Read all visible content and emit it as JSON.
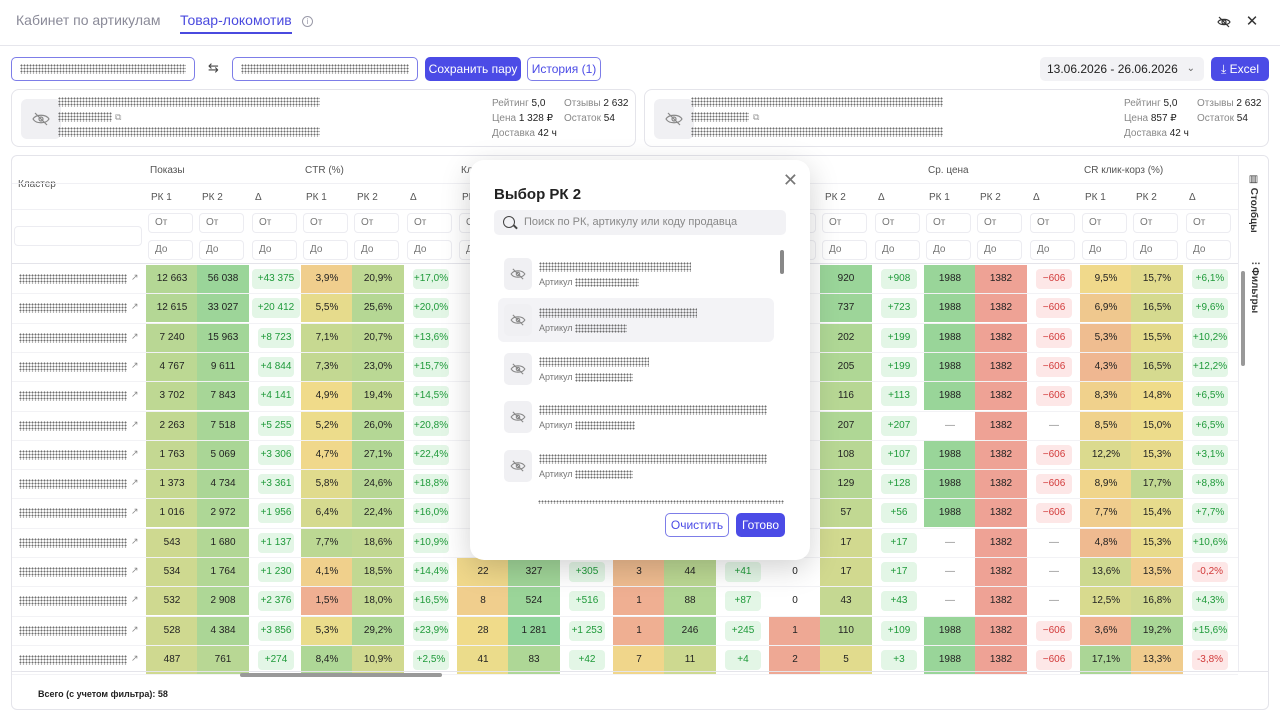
{
  "tabs": [
    {
      "label": "Кабинет по артикулам",
      "active": false
    },
    {
      "label": "Товар-локомотив",
      "active": true
    }
  ],
  "toolbar": {
    "save_pair": "Сохранить пару",
    "history": "История (1)",
    "date_range": "13.06.2026 - 26.06.2026",
    "excel": "Excel"
  },
  "cards": [
    {
      "rating_label": "Рейтинг",
      "rating": "5,0",
      "reviews_label": "Отзывы",
      "reviews": "2 632",
      "price_label": "Цена",
      "price": "1 328 ₽",
      "stock_label": "Остаток",
      "stock": "54",
      "delivery_label": "Доставка",
      "delivery": "42 ч"
    },
    {
      "rating_label": "Рейтинг",
      "rating": "5,0",
      "reviews_label": "Отзывы",
      "reviews": "2 632",
      "price_label": "Цена",
      "price": "857 ₽",
      "stock_label": "Остаток",
      "stock": "54",
      "delivery_label": "Доставка",
      "delivery": "42 ч"
    }
  ],
  "table": {
    "cluster_header": "Кластер",
    "groups": [
      "Показы",
      "CTR (%)",
      "Кл",
      "Ср. цена",
      "CR клик-корз (%)",
      "С"
    ],
    "sub": [
      "РК 1",
      "РК 2",
      "Δ"
    ],
    "from": "От",
    "to": "До",
    "footer": "Всего (с учетом фильтра): 58",
    "side_columns": "Столбцы",
    "side_filters": "Фильтры",
    "rows": [
      {
        "s1": "12 663",
        "s2": "56 038",
        "sd": "+43 375",
        "c1": "3,9%",
        "c2": "20,9%",
        "cd": "+17,0%",
        "k1": "",
        "k2": "",
        "kd": "",
        "o1": "",
        "o2": "",
        "od": "",
        "x1": "",
        "x2": "920",
        "xd": "+908",
        "p1": "1988",
        "p2": "1382",
        "pd": "−606",
        "r1": "9,5%",
        "r2": "15,7%",
        "rd": "+6,1%"
      },
      {
        "s1": "12 615",
        "s2": "33 027",
        "sd": "+20 412",
        "c1": "5,5%",
        "c2": "25,6%",
        "cd": "+20,0%",
        "k1": "",
        "k2": "",
        "kd": "",
        "o1": "",
        "o2": "",
        "od": "",
        "x1": "",
        "x2": "737",
        "xd": "+723",
        "p1": "1988",
        "p2": "1382",
        "pd": "−606",
        "r1": "6,9%",
        "r2": "16,5%",
        "rd": "+9,6%"
      },
      {
        "s1": "7 240",
        "s2": "15 963",
        "sd": "+8 723",
        "c1": "7,1%",
        "c2": "20,7%",
        "cd": "+13,6%",
        "k1": "",
        "k2": "",
        "kd": "",
        "o1": "",
        "o2": "",
        "od": "",
        "x1": "",
        "x2": "202",
        "xd": "+199",
        "p1": "1988",
        "p2": "1382",
        "pd": "−606",
        "r1": "5,3%",
        "r2": "15,5%",
        "rd": "+10,2%"
      },
      {
        "s1": "4 767",
        "s2": "9 611",
        "sd": "+4 844",
        "c1": "7,3%",
        "c2": "23,0%",
        "cd": "+15,7%",
        "k1": "",
        "k2": "",
        "kd": "",
        "o1": "",
        "o2": "",
        "od": "",
        "x1": "",
        "x2": "205",
        "xd": "+199",
        "p1": "1988",
        "p2": "1382",
        "pd": "−606",
        "r1": "4,3%",
        "r2": "16,5%",
        "rd": "+12,2%"
      },
      {
        "s1": "3 702",
        "s2": "7 843",
        "sd": "+4 141",
        "c1": "4,9%",
        "c2": "19,4%",
        "cd": "+14,5%",
        "k1": "",
        "k2": "",
        "kd": "",
        "o1": "",
        "o2": "",
        "od": "",
        "x1": "",
        "x2": "116",
        "xd": "+113",
        "p1": "1988",
        "p2": "1382",
        "pd": "−606",
        "r1": "8,3%",
        "r2": "14,8%",
        "rd": "+6,5%"
      },
      {
        "s1": "2 263",
        "s2": "7 518",
        "sd": "+5 255",
        "c1": "5,2%",
        "c2": "26,0%",
        "cd": "+20,8%",
        "k1": "",
        "k2": "",
        "kd": "",
        "o1": "",
        "o2": "",
        "od": "",
        "x1": "",
        "x2": "207",
        "xd": "+207",
        "p1": "—",
        "p2": "1382",
        "pd": "—",
        "r1": "8,5%",
        "r2": "15,0%",
        "rd": "+6,5%"
      },
      {
        "s1": "1 763",
        "s2": "5 069",
        "sd": "+3 306",
        "c1": "4,7%",
        "c2": "27,1%",
        "cd": "+22,4%",
        "k1": "",
        "k2": "",
        "kd": "",
        "o1": "",
        "o2": "",
        "od": "",
        "x1": "",
        "x2": "108",
        "xd": "+107",
        "p1": "1988",
        "p2": "1382",
        "pd": "−606",
        "r1": "12,2%",
        "r2": "15,3%",
        "rd": "+3,1%"
      },
      {
        "s1": "1 373",
        "s2": "4 734",
        "sd": "+3 361",
        "c1": "5,8%",
        "c2": "24,6%",
        "cd": "+18,8%",
        "k1": "",
        "k2": "",
        "kd": "",
        "o1": "",
        "o2": "",
        "od": "",
        "x1": "",
        "x2": "129",
        "xd": "+128",
        "p1": "1988",
        "p2": "1382",
        "pd": "−606",
        "r1": "8,9%",
        "r2": "17,7%",
        "rd": "+8,8%"
      },
      {
        "s1": "1 016",
        "s2": "2 972",
        "sd": "+1 956",
        "c1": "6,4%",
        "c2": "22,4%",
        "cd": "+16,0%",
        "k1": "",
        "k2": "",
        "kd": "",
        "o1": "",
        "o2": "",
        "od": "",
        "x1": "",
        "x2": "57",
        "xd": "+56",
        "p1": "1988",
        "p2": "1382",
        "pd": "−606",
        "r1": "7,7%",
        "r2": "15,4%",
        "rd": "+7,7%"
      },
      {
        "s1": "543",
        "s2": "1 680",
        "sd": "+1 137",
        "c1": "7,7%",
        "c2": "18,6%",
        "cd": "+10,9%",
        "k1": "",
        "k2": "",
        "kd": "",
        "o1": "",
        "o2": "",
        "od": "",
        "x1": "",
        "x2": "17",
        "xd": "+17",
        "p1": "—",
        "p2": "1382",
        "pd": "—",
        "r1": "4,8%",
        "r2": "15,3%",
        "rd": "+10,6%"
      },
      {
        "s1": "534",
        "s2": "1 764",
        "sd": "+1 230",
        "c1": "4,1%",
        "c2": "18,5%",
        "cd": "+14,4%",
        "k1": "22",
        "k2": "327",
        "kd": "+305",
        "o1": "3",
        "o2": "44",
        "od": "+41",
        "x1": "0",
        "x2": "17",
        "xd": "+17",
        "p1": "—",
        "p2": "1382",
        "pd": "—",
        "r1": "13,6%",
        "r2": "13,5%",
        "rd": "-0,2%"
      },
      {
        "s1": "532",
        "s2": "2 908",
        "sd": "+2 376",
        "c1": "1,5%",
        "c2": "18,0%",
        "cd": "+16,5%",
        "k1": "8",
        "k2": "524",
        "kd": "+516",
        "o1": "1",
        "o2": "88",
        "od": "+87",
        "x1": "0",
        "x2": "43",
        "xd": "+43",
        "p1": "—",
        "p2": "1382",
        "pd": "—",
        "r1": "12,5%",
        "r2": "16,8%",
        "rd": "+4,3%"
      },
      {
        "s1": "528",
        "s2": "4 384",
        "sd": "+3 856",
        "c1": "5,3%",
        "c2": "29,2%",
        "cd": "+23,9%",
        "k1": "28",
        "k2": "1 281",
        "kd": "+1 253",
        "o1": "1",
        "o2": "246",
        "od": "+245",
        "x1": "1",
        "x2": "110",
        "xd": "+109",
        "p1": "1988",
        "p2": "1382",
        "pd": "−606",
        "r1": "3,6%",
        "r2": "19,2%",
        "rd": "+15,6%"
      },
      {
        "s1": "487",
        "s2": "761",
        "sd": "+274",
        "c1": "8,4%",
        "c2": "10,9%",
        "cd": "+2,5%",
        "k1": "41",
        "k2": "83",
        "kd": "+42",
        "o1": "7",
        "o2": "11",
        "od": "+4",
        "x1": "2",
        "x2": "5",
        "xd": "+3",
        "p1": "1988",
        "p2": "1382",
        "pd": "−606",
        "r1": "17,1%",
        "r2": "13,3%",
        "rd": "-3,8%"
      }
    ]
  },
  "modal": {
    "title": "Выбор РК 2",
    "search_placeholder": "Поиск по РК, артикулу или коду продавца",
    "article_label": "Артикул",
    "clear": "Очистить",
    "done": "Готово"
  },
  "colors": {
    "accent": "#4b4be6",
    "green": "#8fd49b",
    "red": "#ee9b96",
    "yellow": "#f0dc8a"
  }
}
